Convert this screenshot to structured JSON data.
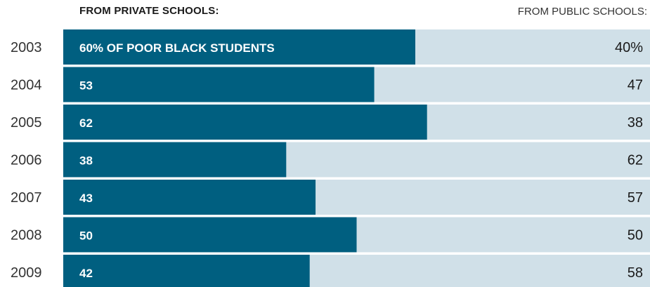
{
  "legend": {
    "private_label": "FROM PRIVATE SCHOOLS:",
    "public_label": "FROM PUBLIC SCHOOLS:"
  },
  "colors": {
    "private": "#005f80",
    "public": "#d0e0e8",
    "private_text": "#ffffff",
    "public_text": "#1a1a1a",
    "year_text": "#333333"
  },
  "chart_data": {
    "type": "bar",
    "stacked": true,
    "orientation": "horizontal",
    "categories": [
      "2003",
      "2004",
      "2005",
      "2006",
      "2007",
      "2008",
      "2009"
    ],
    "series": [
      {
        "name": "FROM PRIVATE SCHOOLS:",
        "values": [
          60,
          53,
          62,
          38,
          43,
          50,
          42
        ]
      },
      {
        "name": "FROM PUBLIC SCHOOLS:",
        "values": [
          40,
          47,
          38,
          62,
          57,
          50,
          58
        ]
      }
    ],
    "private_labels": [
      "60% OF POOR BLACK STUDENTS",
      "53",
      "62",
      "38",
      "43",
      "50",
      "42"
    ],
    "public_labels": [
      "40%",
      "47",
      "38",
      "62",
      "57",
      "50",
      "58"
    ],
    "xlim": [
      0,
      100
    ]
  }
}
